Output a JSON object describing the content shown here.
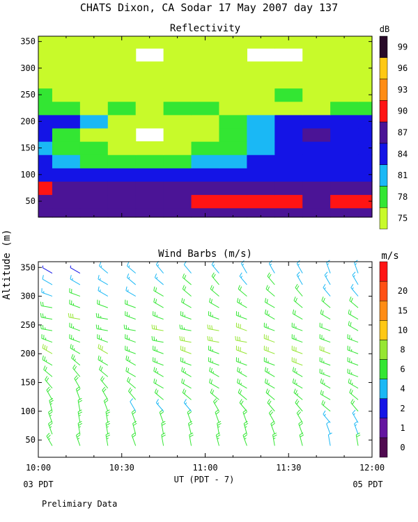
{
  "title": "CHATS Dixon, CA  Sodar  17 May 2007  day 137",
  "y_axis_label": "Altitude (m)",
  "x_axis_label": "UT  (PDT - 7)",
  "x_time_start_note": "03 PDT",
  "x_time_end_note": "05 PDT",
  "footer_note": "Prelimiary Data",
  "chart_data": [
    {
      "type": "heatmap",
      "title": "Reflectivity",
      "unit": "dB",
      "x_ticks": [
        "10:00",
        "10:30",
        "11:00",
        "11:30",
        "12:00"
      ],
      "x_range": [
        "10:00",
        "12:00"
      ],
      "y_ticks": [
        50,
        100,
        150,
        200,
        250,
        300,
        350
      ],
      "ylim": [
        20,
        360
      ],
      "color_levels": [
        75,
        78,
        81,
        84,
        87,
        90,
        93,
        96,
        99
      ],
      "level_colors": [
        "#c8fa2a",
        "#33e633",
        "#1ab8f5",
        "#1414e6",
        "#4b1496",
        "#ff1414",
        "#ff8c14",
        "#ffc814",
        "#280a28"
      ],
      "x": [
        "10:00",
        "10:10",
        "10:20",
        "10:30",
        "10:40",
        "10:50",
        "11:00",
        "11:10",
        "11:20",
        "11:30",
        "11:40",
        "11:50",
        "12:00"
      ],
      "y": [
        25,
        50,
        75,
        100,
        125,
        150,
        175,
        200,
        225,
        250,
        275,
        300,
        325,
        350
      ],
      "z": [
        [
          87,
          87,
          87,
          87,
          87,
          87,
          87,
          87,
          87,
          87,
          87,
          87,
          87
        ],
        [
          87,
          87,
          88,
          87,
          87,
          87,
          91,
          90,
          90,
          90,
          88,
          91,
          91
        ],
        [
          90,
          88,
          88,
          87,
          87,
          87,
          88,
          88,
          88,
          87,
          87,
          87,
          87
        ],
        [
          85,
          85,
          84,
          85,
          85,
          84,
          84,
          85,
          85,
          85,
          85,
          85,
          84
        ],
        [
          84,
          82,
          80,
          79,
          79,
          80,
          81,
          83,
          84,
          84,
          84,
          85,
          84
        ],
        [
          83,
          79,
          78,
          76,
          76,
          77,
          78,
          80,
          82,
          84,
          85,
          84,
          84
        ],
        [
          85,
          80,
          77,
          76,
          74,
          76,
          77,
          80,
          83,
          85,
          87,
          86,
          85
        ],
        [
          84,
          84,
          81,
          77,
          76,
          76,
          76,
          79,
          82,
          84,
          85,
          85,
          84
        ],
        [
          80,
          79,
          77,
          78,
          77,
          80,
          80,
          77,
          76,
          77,
          77,
          78,
          79
        ],
        [
          78,
          77,
          77,
          76,
          75,
          76,
          75,
          76,
          77,
          78,
          77,
          76,
          76
        ],
        [
          77,
          76,
          77,
          76,
          75,
          76,
          75,
          76,
          77,
          76,
          75,
          76,
          76
        ],
        [
          76,
          76,
          76,
          76,
          75,
          76,
          75,
          76,
          76,
          75,
          75,
          76,
          75
        ],
        [
          76,
          76,
          75,
          75,
          74,
          75,
          75,
          75,
          74,
          74,
          75,
          75,
          75
        ],
        [
          75,
          75,
          75,
          75,
          75,
          75,
          75,
          75,
          75,
          75,
          75,
          75,
          75
        ]
      ],
      "legend_ticks": [
        75,
        78,
        81,
        84,
        87,
        90,
        93,
        96,
        99
      ]
    },
    {
      "type": "scatter",
      "title": "Wind Barbs (m/s)",
      "unit": "m/s",
      "x_ticks": [
        "10:00",
        "10:30",
        "11:00",
        "11:30",
        "12:00"
      ],
      "x_range": [
        "10:00",
        "12:00"
      ],
      "y_ticks": [
        50,
        100,
        150,
        200,
        250,
        300,
        350
      ],
      "ylim": [
        20,
        360
      ],
      "speed_levels": [
        0,
        1,
        2,
        4,
        6,
        8,
        10,
        15,
        20
      ],
      "legend_ticks": [
        0,
        1,
        2,
        4,
        6,
        8,
        10,
        15,
        20
      ],
      "level_colors": [
        "#500a50",
        "#6414a0",
        "#1414e6",
        "#1ab8f5",
        "#33e633",
        "#96e632",
        "#ffc814",
        "#ff8c14",
        "#ff5014",
        "#ff1414"
      ],
      "profile_times": [
        "10:05",
        "10:15",
        "10:25",
        "10:35",
        "10:45",
        "10:55",
        "11:05",
        "11:15",
        "11:25",
        "11:35",
        "11:45",
        "11:55"
      ],
      "heights": [
        40,
        60,
        80,
        100,
        120,
        140,
        160,
        180,
        200,
        220,
        240,
        260,
        280,
        300,
        320,
        340
      ],
      "direction_deg": [
        [
          330,
          340,
          340,
          345,
          330,
          320,
          310,
          300,
          300,
          290,
          280,
          280,
          280,
          290,
          300,
          300
        ],
        [
          340,
          350,
          350,
          350,
          340,
          330,
          320,
          310,
          300,
          290,
          290,
          280,
          290,
          290,
          300,
          300
        ],
        [
          350,
          350,
          350,
          340,
          330,
          320,
          310,
          300,
          300,
          290,
          280,
          280,
          290,
          300,
          300,
          310
        ],
        [
          340,
          345,
          340,
          330,
          320,
          310,
          300,
          300,
          290,
          290,
          280,
          290,
          290,
          300,
          310,
          310
        ],
        [
          350,
          350,
          340,
          320,
          310,
          300,
          300,
          290,
          290,
          280,
          280,
          290,
          300,
          300,
          310,
          320
        ],
        [
          350,
          345,
          340,
          320,
          310,
          300,
          300,
          290,
          290,
          280,
          280,
          290,
          300,
          310,
          310,
          320
        ],
        [
          345,
          350,
          340,
          330,
          310,
          300,
          300,
          290,
          290,
          280,
          280,
          290,
          300,
          310,
          320,
          320
        ],
        [
          340,
          345,
          340,
          320,
          310,
          300,
          300,
          290,
          290,
          280,
          290,
          290,
          300,
          310,
          320,
          330
        ],
        [
          350,
          340,
          330,
          320,
          310,
          300,
          300,
          290,
          290,
          290,
          290,
          300,
          300,
          310,
          320,
          330
        ],
        [
          345,
          340,
          330,
          320,
          310,
          300,
          300,
          290,
          290,
          290,
          290,
          300,
          310,
          320,
          330,
          330
        ],
        [
          350,
          340,
          320,
          310,
          300,
          300,
          290,
          290,
          290,
          290,
          290,
          300,
          310,
          320,
          330,
          340
        ],
        [
          350,
          340,
          330,
          320,
          310,
          300,
          290,
          290,
          290,
          290,
          300,
          300,
          310,
          320,
          330,
          340
        ]
      ],
      "speed_ms": [
        [
          5,
          5,
          5,
          5,
          4,
          4,
          4,
          5,
          6,
          5,
          5,
          5,
          4,
          3,
          2,
          1
        ],
        [
          5,
          5,
          5,
          4,
          4,
          4,
          4,
          5,
          5,
          5,
          5,
          6,
          5,
          4,
          3,
          1
        ],
        [
          5,
          5,
          5,
          4,
          4,
          4,
          4,
          5,
          6,
          5,
          5,
          5,
          4,
          3,
          3,
          3
        ],
        [
          4,
          4,
          4,
          2,
          4,
          4,
          4,
          5,
          5,
          5,
          5,
          5,
          4,
          3,
          3,
          3
        ],
        [
          4,
          4,
          4,
          3,
          4,
          4,
          5,
          5,
          5,
          5,
          6,
          5,
          4,
          4,
          3,
          3
        ],
        [
          4,
          4,
          4,
          3,
          4,
          4,
          5,
          5,
          6,
          6,
          5,
          5,
          4,
          4,
          4,
          2
        ],
        [
          5,
          5,
          4,
          4,
          4,
          4,
          5,
          5,
          5,
          6,
          6,
          5,
          4,
          4,
          4,
          3
        ],
        [
          5,
          5,
          4,
          4,
          4,
          5,
          5,
          5,
          6,
          6,
          7,
          5,
          5,
          4,
          3,
          3
        ],
        [
          5,
          4,
          4,
          4,
          4,
          5,
          5,
          5,
          6,
          6,
          5,
          5,
          4,
          4,
          4,
          3
        ],
        [
          4,
          4,
          4,
          4,
          5,
          5,
          5,
          6,
          6,
          5,
          5,
          4,
          4,
          4,
          3,
          3
        ],
        [
          2,
          2,
          3,
          4,
          4,
          5,
          5,
          5,
          6,
          5,
          4,
          4,
          4,
          3,
          3,
          3
        ],
        [
          4,
          3,
          3,
          4,
          4,
          5,
          5,
          5,
          5,
          5,
          4,
          4,
          4,
          3,
          3,
          3
        ]
      ]
    }
  ]
}
